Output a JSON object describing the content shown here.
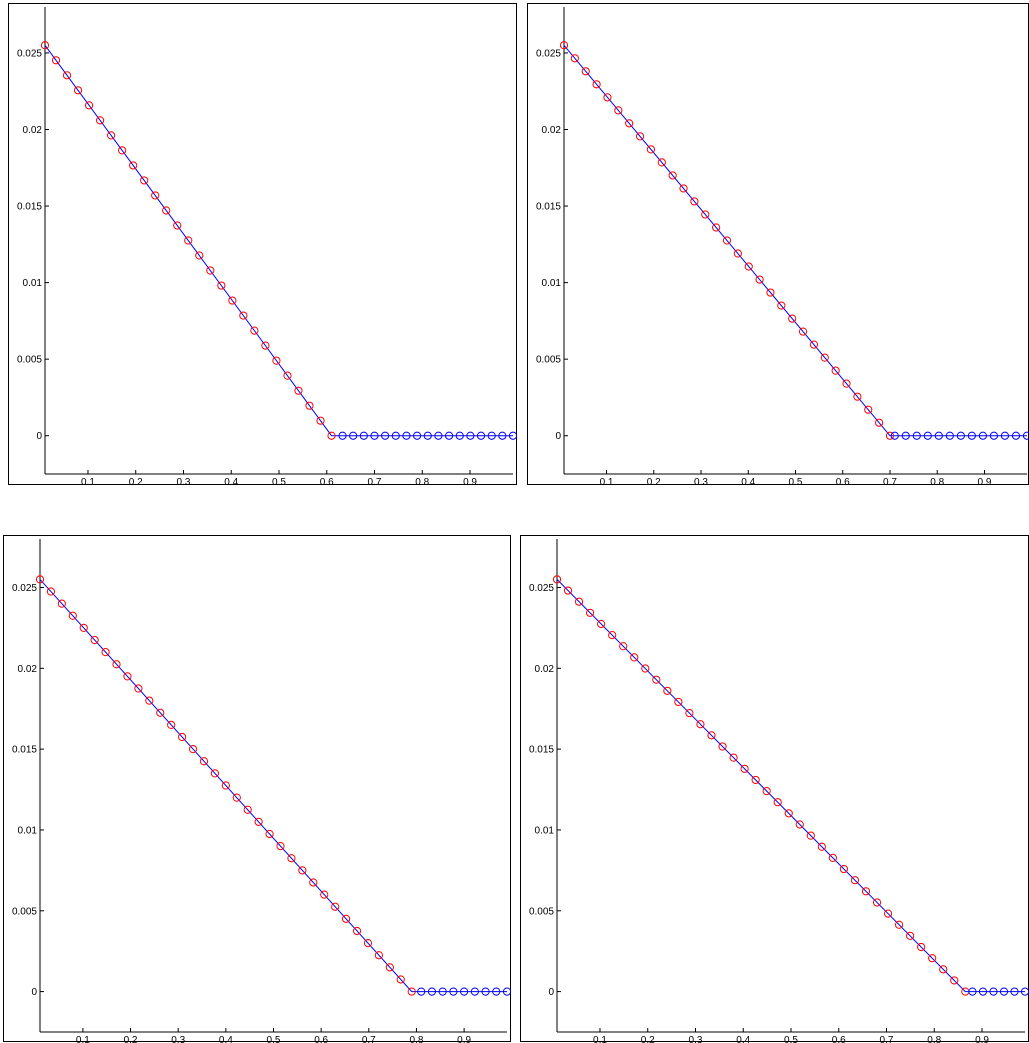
{
  "chart_data": [
    {
      "type": "line",
      "title": "",
      "xlabel": "",
      "ylabel": "",
      "xlim": [
        0.01,
        0.99
      ],
      "ylim": [
        -0.0025,
        0.028
      ],
      "xticks": [
        "0.1",
        "0.2",
        "0.3",
        "0.4",
        "0.5",
        "0.6",
        "0.7",
        "0.8",
        "0.9"
      ],
      "yticks": [
        "0",
        "0.005",
        "0.01",
        "0.015",
        "0.02",
        "0.025"
      ],
      "grid": false,
      "series": [
        {
          "color": "#0000ff",
          "marker": "line",
          "x": [
            0.01,
            0.61,
            0.99
          ],
          "y": [
            0.0255,
            0.0,
            0.0
          ]
        },
        {
          "color": "#ff0000",
          "marker": "circle",
          "x_start": 0.01,
          "x_end": 0.61,
          "n_points": 27,
          "y_start": 0.0255,
          "y_end": 0.0
        },
        {
          "color": "#0000ff",
          "marker": "circle",
          "x_start": 0.633,
          "x_end": 0.99,
          "n_points": 17,
          "y_start": 0.0,
          "y_end": 0.0
        }
      ]
    },
    {
      "type": "line",
      "title": "",
      "xlabel": "",
      "ylabel": "",
      "xlim": [
        0.01,
        0.99
      ],
      "ylim": [
        -0.0025,
        0.028
      ],
      "xticks": [
        "0.1",
        "0.2",
        "0.3",
        "0.4",
        "0.5",
        "0.6",
        "0.7",
        "0.8",
        "0.9"
      ],
      "yticks": [
        "0",
        "0.005",
        "0.01",
        "0.015",
        "0.02",
        "0.025"
      ],
      "grid": false,
      "series": [
        {
          "color": "#0000ff",
          "marker": "line",
          "x": [
            0.01,
            0.7,
            0.99
          ],
          "y": [
            0.0255,
            0.0,
            0.0
          ]
        },
        {
          "color": "#ff0000",
          "marker": "circle",
          "x_start": 0.01,
          "x_end": 0.7,
          "n_points": 31,
          "y_start": 0.0255,
          "y_end": 0.0
        },
        {
          "color": "#0000ff",
          "marker": "circle",
          "x_start": 0.71,
          "x_end": 0.99,
          "n_points": 13,
          "y_start": 0.0,
          "y_end": 0.0
        }
      ]
    },
    {
      "type": "line",
      "title": "",
      "xlabel": "",
      "ylabel": "",
      "xlim": [
        0.01,
        0.99
      ],
      "ylim": [
        -0.0025,
        0.028
      ],
      "xticks": [
        "0.1",
        "0.2",
        "0.3",
        "0.4",
        "0.5",
        "0.6",
        "0.7",
        "0.8",
        "0.9"
      ],
      "yticks": [
        "0",
        "0.005",
        "0.01",
        "0.015",
        "0.02",
        "0.025"
      ],
      "grid": false,
      "series": [
        {
          "color": "#0000ff",
          "marker": "line",
          "x": [
            0.01,
            0.79,
            0.99
          ],
          "y": [
            0.0255,
            0.0,
            0.0
          ]
        },
        {
          "color": "#ff0000",
          "marker": "circle",
          "x_start": 0.01,
          "x_end": 0.79,
          "n_points": 35,
          "y_start": 0.0255,
          "y_end": 0.0
        },
        {
          "color": "#0000ff",
          "marker": "circle",
          "x_start": 0.81,
          "x_end": 0.99,
          "n_points": 9,
          "y_start": 0.0,
          "y_end": 0.0
        }
      ]
    },
    {
      "type": "line",
      "title": "",
      "xlabel": "",
      "ylabel": "",
      "xlim": [
        0.01,
        0.99
      ],
      "ylim": [
        -0.0025,
        0.028
      ],
      "xticks": [
        "0.1",
        "0.2",
        "0.3",
        "0.4",
        "0.5",
        "0.6",
        "0.7",
        "0.8",
        "0.9"
      ],
      "yticks": [
        "0",
        "0.005",
        "0.01",
        "0.015",
        "0.02",
        "0.025"
      ],
      "grid": false,
      "series": [
        {
          "color": "#0000ff",
          "marker": "line",
          "x": [
            0.01,
            0.865,
            0.99
          ],
          "y": [
            0.0255,
            0.0,
            0.0
          ]
        },
        {
          "color": "#ff0000",
          "marker": "circle",
          "x_start": 0.01,
          "x_end": 0.865,
          "n_points": 38,
          "y_start": 0.0255,
          "y_end": 0.0
        },
        {
          "color": "#0000ff",
          "marker": "circle",
          "x_start": 0.88,
          "x_end": 0.99,
          "n_points": 6,
          "y_start": 0.0,
          "y_end": 0.0
        }
      ]
    }
  ]
}
